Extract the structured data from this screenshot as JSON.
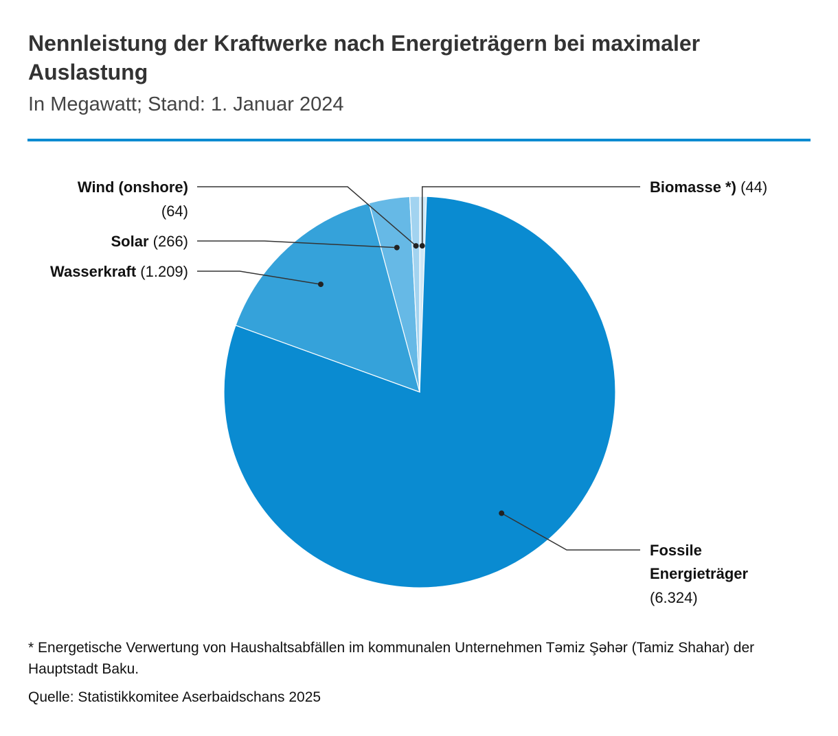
{
  "header": {
    "title": "Nennleistung der Kraftwerke nach Energieträgern bei maximaler Auslastung",
    "subtitle": "In Megawatt; Stand: 1. Januar 2024",
    "accent_color": "#0a8bd1"
  },
  "chart_data": {
    "type": "pie",
    "title": "Nennleistung der Kraftwerke nach Energieträgern bei maximaler Auslastung",
    "subtitle": "In Megawatt; Stand: 1. Januar 2024",
    "unit": "MW",
    "slices": [
      {
        "key": "biomasse",
        "name": "Biomasse *)",
        "value": 44,
        "value_label": "(44)",
        "color": "#cfe8f6"
      },
      {
        "key": "fossil",
        "name": "Fossile Energieträger",
        "name_lines": [
          "Fossile",
          "Energieträger"
        ],
        "value": 6324,
        "value_label": "(6.324)",
        "color": "#0a8bd1"
      },
      {
        "key": "wasserkraft",
        "name": "Wasserkraft",
        "value": 1209,
        "value_label": "(1.209)",
        "color": "#35a2da"
      },
      {
        "key": "solar",
        "name": "Solar",
        "value": 266,
        "value_label": "(266)",
        "color": "#66b9e6"
      },
      {
        "key": "wind",
        "name": "Wind (onshore)",
        "value": 64,
        "value_label": "(64)",
        "color": "#a2d3f0"
      }
    ]
  },
  "footer": {
    "footnote": "* Energetische Verwertung von Haushaltsabfällen im kommunalen Unternehmen Təmiz Şəhər (Tamiz Shahar) der Hauptstadt Baku.",
    "source": "Quelle: Statistikkomitee Aserbaidschans 2025"
  }
}
